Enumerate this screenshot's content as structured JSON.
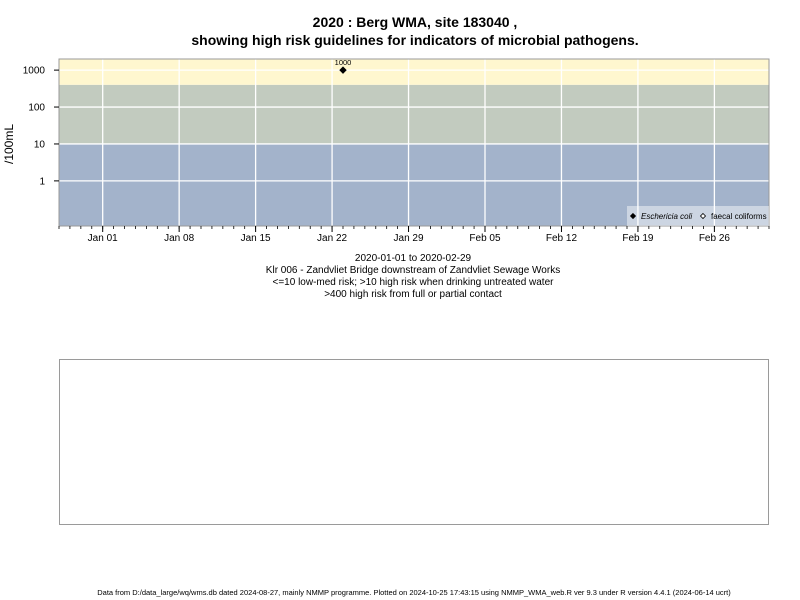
{
  "title_line1": "2020 : Berg WMA, site 183040 ,",
  "title_line2": "showing high risk guidelines for indicators of microbial pathogens.",
  "subtitle": {
    "date_range": "2020-01-01 to 2020-02-29",
    "site_desc": "Klr 006 - Zandvliet Bridge downstream of Zandvliet Sewage Works",
    "risk_line1": "<=10 low-med risk; >10 high risk when drinking untreated water",
    "risk_line2": ">400 high risk from full or partial contact"
  },
  "footer": "Data from D:/data_large/wq/wms.db dated 2024-08-27, mainly NMMP programme. Plotted on 2024-10-25 17:43:15 using NMMP_WMA_web.R ver 9.3 under R version 4.4.1 (2024-06-14 ucrt)",
  "chart_data": {
    "type": "scatter",
    "ylabel": "/100mL",
    "y_scale": "log",
    "y_ticks": [
      1,
      10,
      100,
      1000
    ],
    "y_tick_labels": [
      "1",
      "10",
      "100",
      "1000"
    ],
    "ylim": [
      0.06,
      2000
    ],
    "xlim": [
      "2019-12-28",
      "2020-03-02"
    ],
    "x_ticks": [
      "2020-01-01",
      "2020-01-08",
      "2020-01-15",
      "2020-01-22",
      "2020-01-29",
      "2020-02-05",
      "2020-02-12",
      "2020-02-19",
      "2020-02-26"
    ],
    "x_tick_labels": [
      "Jan 01",
      "Jan 08",
      "Jan 15",
      "Jan 22",
      "Jan 29",
      "Feb 05",
      "Feb 12",
      "Feb 19",
      "Feb 26"
    ],
    "risk_bands": [
      {
        "from": 0.06,
        "to": 10,
        "color": "#a3b3cb"
      },
      {
        "from": 10,
        "to": 400,
        "color": "#c2cbbf"
      },
      {
        "from": 400,
        "to": 2000,
        "color": "#fff7cf"
      }
    ],
    "series": [
      {
        "name": "Eschericia coli",
        "marker": "diamond-filled",
        "points": [
          {
            "x": "2020-01-23",
            "y": 1000,
            "label": "1000"
          }
        ]
      },
      {
        "name": "faecal coliforms",
        "marker": "diamond-open",
        "points": []
      }
    ],
    "legend_position": "bottom-right",
    "grid": true
  }
}
